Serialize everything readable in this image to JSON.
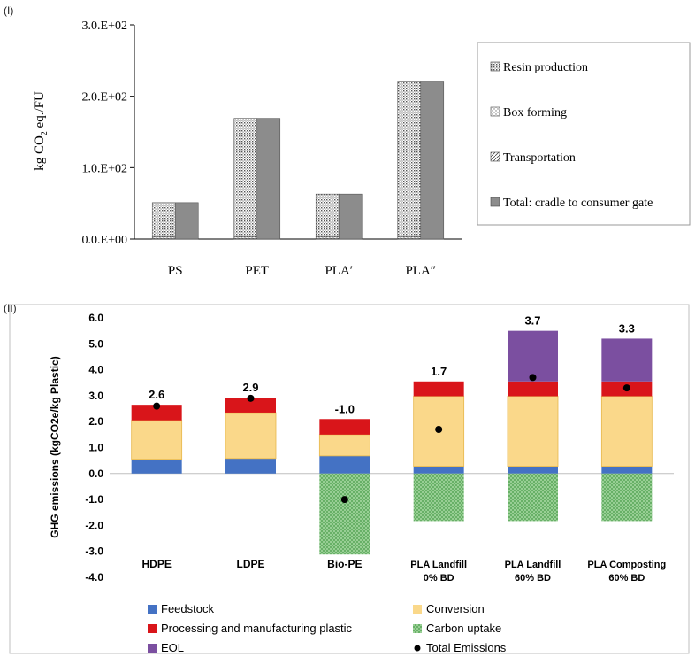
{
  "chart_data": [
    {
      "panel": "(I)",
      "type": "bar",
      "ylabel_prefix": "kg CO",
      "ylabel_sub": "2",
      "ylabel_suffix": " eq./FU",
      "ylim": [
        0,
        300
      ],
      "yticks": [
        0,
        100,
        200,
        300
      ],
      "ytick_labels": [
        "0.0.E+00",
        "1.0.E+02",
        "2.0.E+02",
        "3.0.E+02"
      ],
      "categories": [
        "PS",
        "PET",
        "PLA′",
        "PLA″"
      ],
      "series": [
        {
          "name": "Resin production",
          "values": [
            48,
            166,
            60,
            217
          ]
        },
        {
          "name": "Box forming",
          "values": [
            2,
            2,
            2,
            2
          ]
        },
        {
          "name": "Transportation",
          "values": [
            1,
            1,
            1,
            1
          ]
        },
        {
          "name": "Total: cradle to consumer gate",
          "values": [
            51,
            169,
            63,
            220
          ]
        }
      ],
      "legend": [
        "Resin production",
        "Box forming",
        "Transportation",
        "Total: cradle to consumer gate"
      ],
      "legend_position": "right"
    },
    {
      "panel": "(II)",
      "type": "bar",
      "stacked": true,
      "ylabel": "GHG emissions (kgCO2e/kg Plastic)",
      "ylim": [
        -4,
        6
      ],
      "yticks": [
        -4,
        -3,
        -2,
        -1,
        0,
        1,
        2,
        3,
        4,
        5,
        6
      ],
      "ytick_labels": [
        "-4.0",
        "-3.0",
        "-2.0",
        "-1.0",
        "0.0",
        "1.0",
        "2.0",
        "3.0",
        "4.0",
        "5.0",
        "6.0"
      ],
      "categories": [
        [
          "HDPE"
        ],
        [
          "LDPE"
        ],
        [
          "Bio-PE"
        ],
        [
          "PLA Landfill",
          "0% BD"
        ],
        [
          "PLA Landfill",
          "60% BD"
        ],
        [
          "PLA Composting",
          "60% BD"
        ]
      ],
      "series": [
        {
          "name": "Feedstock",
          "color": "#4472c4",
          "values": [
            0.55,
            0.58,
            0.68,
            0.28,
            0.28,
            0.28
          ]
        },
        {
          "name": "Conversion",
          "color": "#fad88a",
          "values": [
            1.5,
            1.77,
            0.82,
            2.7,
            2.7,
            2.7
          ]
        },
        {
          "name": "Processing and manufacturing plastic",
          "color": "#d9151a",
          "values": [
            0.6,
            0.57,
            0.6,
            0.57,
            0.57,
            0.57
          ]
        },
        {
          "name": "Carbon uptake",
          "color": "#92d090",
          "values": [
            0,
            0,
            -3.12,
            -1.83,
            -1.83,
            -1.83
          ]
        },
        {
          "name": "EOL",
          "color": "#7b4fa0",
          "values": [
            0,
            0,
            0,
            0,
            1.95,
            1.65
          ]
        }
      ],
      "total_emissions": [
        2.6,
        2.9,
        -1.0,
        1.7,
        3.7,
        3.3
      ],
      "total_labels": [
        "2.6",
        "2.9",
        "-1.0",
        "1.7",
        "3.7",
        "3.3"
      ],
      "total_name": "Total Emissions",
      "legend_position": "bottom"
    }
  ]
}
